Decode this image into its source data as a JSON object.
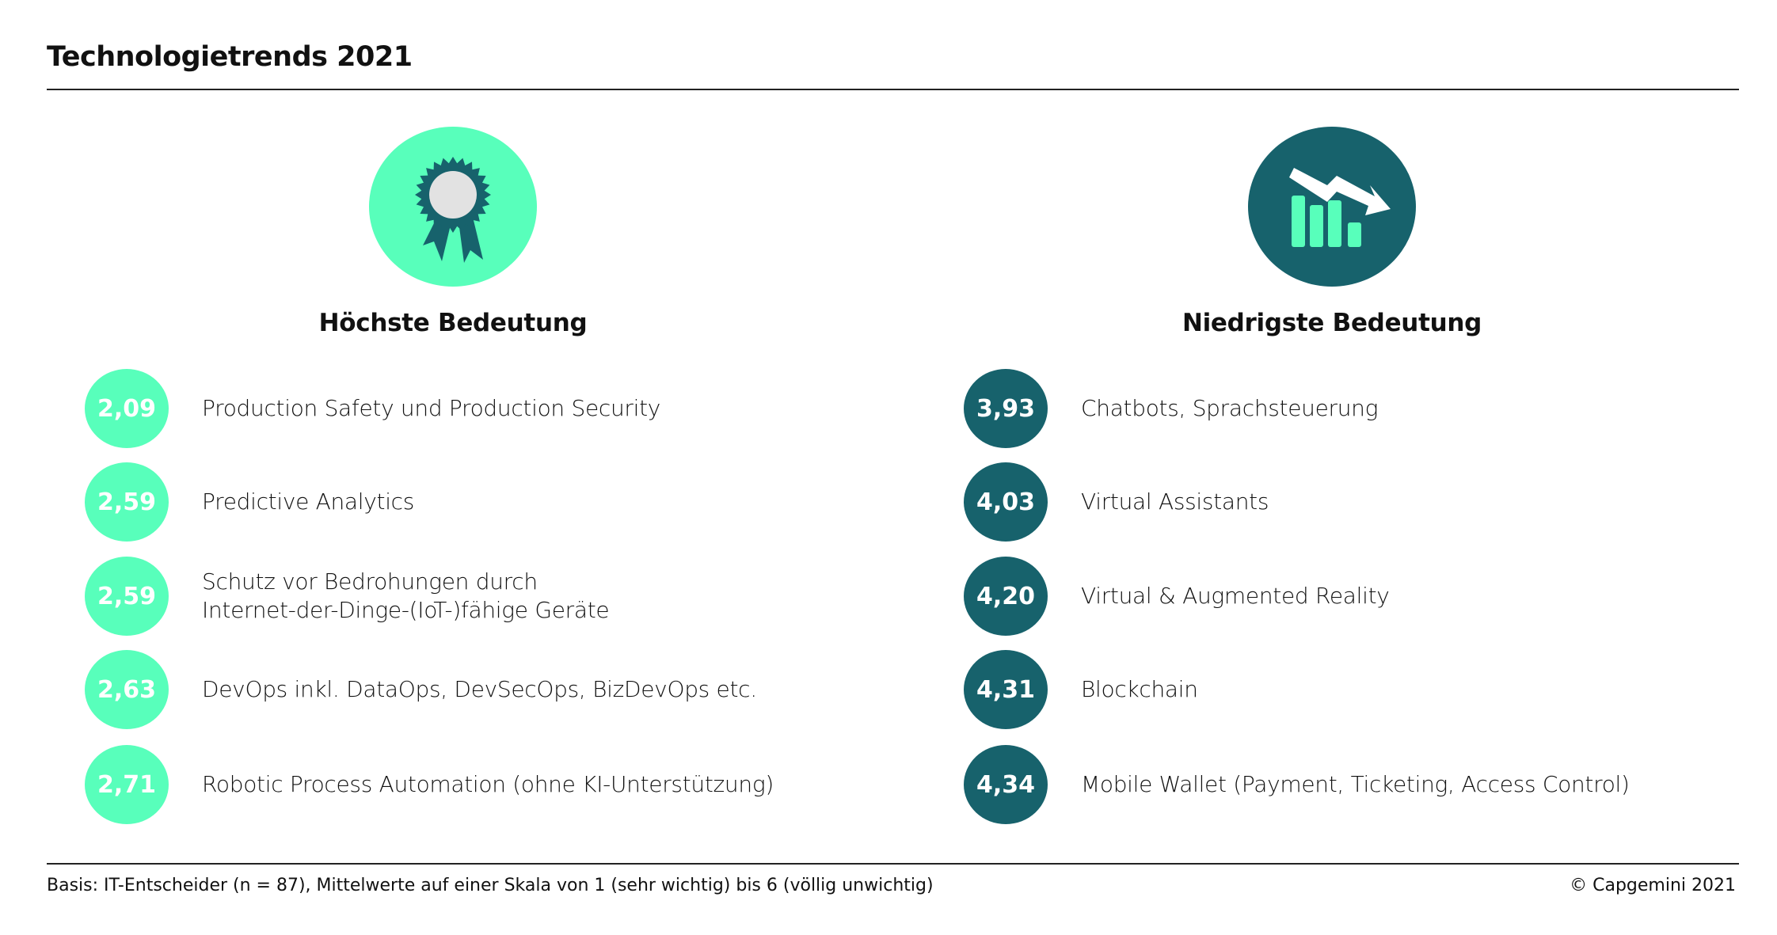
{
  "title": "Technologietrends 2021",
  "colors": {
    "mint": "#58FFBB",
    "teal": "#17626C"
  },
  "left": {
    "icon": "award-rosette-icon",
    "heading": "Höchste Bedeutung",
    "items": [
      {
        "value": "2,09",
        "label": "Production Safety und Production Security"
      },
      {
        "value": "2,59",
        "label": "Predictive Analytics"
      },
      {
        "value": "2,59",
        "label": "Schutz vor Bedrohungen durch\nInternet-der-Dinge-(IoT-)fähige Geräte"
      },
      {
        "value": "2,63",
        "label": "DevOps inkl. DataOps, DevSecOps, BizDevOps etc."
      },
      {
        "value": "2,71",
        "label": "Robotic Process Automation (ohne KI-Unterstützung)"
      }
    ]
  },
  "right": {
    "icon": "declining-chart-icon",
    "heading": "Niedrigste Bedeutung",
    "items": [
      {
        "value": "3,93",
        "label": "Chatbots, Sprachsteuerung"
      },
      {
        "value": "4,03",
        "label": "Virtual Assistants"
      },
      {
        "value": "4,20",
        "label": "Virtual & Augmented Reality"
      },
      {
        "value": "4,31",
        "label": "Blockchain"
      },
      {
        "value": "4,34",
        "label": "Mobile Wallet (Payment, Ticketing, Access Control)"
      }
    ]
  },
  "footer": {
    "basis": "Basis: IT-Entscheider (n = 87), Mittelwerte auf einer Skala von 1 (sehr wichtig) bis 6 (völlig unwichtig)",
    "copyright": "© Capgemini 2021"
  }
}
